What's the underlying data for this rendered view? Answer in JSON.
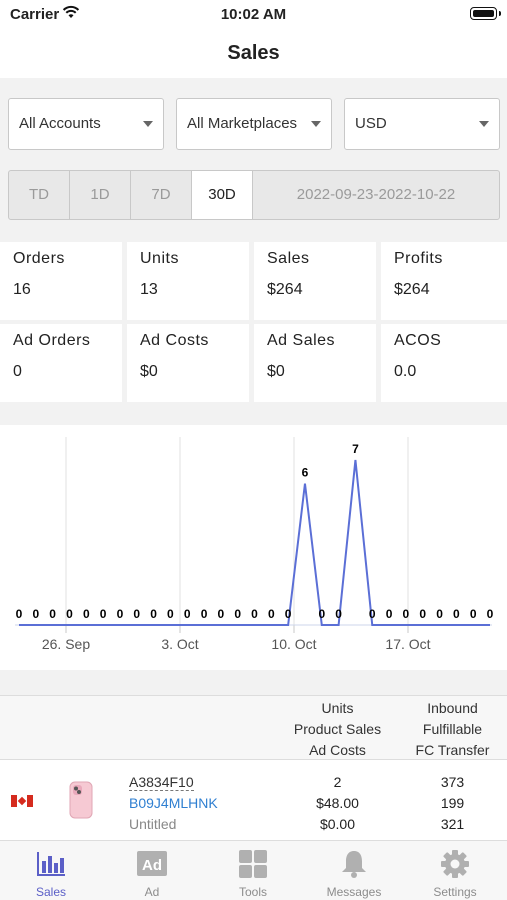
{
  "status": {
    "carrier": "Carrier",
    "time": "10:02 AM"
  },
  "nav": {
    "title": "Sales"
  },
  "filters": {
    "account": "All Accounts",
    "marketplace": "All Marketplaces",
    "currency": "USD"
  },
  "periods": {
    "options": [
      "TD",
      "1D",
      "7D",
      "30D"
    ],
    "selected": "30D",
    "range": "2022-09-23-2022-10-22"
  },
  "metrics": [
    {
      "label": "Orders",
      "value": "16"
    },
    {
      "label": "Units",
      "value": "13"
    },
    {
      "label": "Sales",
      "value": "$264"
    },
    {
      "label": "Profits",
      "value": "$264"
    },
    {
      "label": "Ad Orders",
      "value": "0"
    },
    {
      "label": "Ad Costs",
      "value": "$0"
    },
    {
      "label": "Ad Sales",
      "value": "$0"
    },
    {
      "label": "ACOS",
      "value": "0.0"
    }
  ],
  "chart_data": {
    "type": "line",
    "x_ticks": [
      "26. Sep",
      "3. Oct",
      "10. Oct",
      "17. Oct"
    ],
    "values": [
      0,
      0,
      0,
      0,
      0,
      0,
      0,
      0,
      0,
      0,
      0,
      0,
      0,
      0,
      0,
      0,
      0,
      6,
      0,
      0,
      7,
      0,
      0,
      0,
      0,
      0,
      0,
      0,
      0
    ],
    "series_color": "#5b6fd6",
    "grid": true
  },
  "table": {
    "header": {
      "col2": [
        "Units",
        "Product Sales",
        "Ad Costs"
      ],
      "col3": [
        "Inbound",
        "Fulfillable",
        "FC Transfer"
      ]
    },
    "rows": [
      {
        "flag": "canada-flag-icon",
        "sku": "A3834F10",
        "asin": "B09J4MLHNK",
        "name": "Untitled",
        "units": "2",
        "product_sales": "$48.00",
        "ad_costs": "$0.00",
        "inbound": "373",
        "fulfillable": "199",
        "fc_transfer": "321"
      }
    ]
  },
  "tabs": [
    {
      "label": "Sales",
      "icon": "bar-chart-icon",
      "active": true
    },
    {
      "label": "Ad",
      "icon": "ad-icon",
      "active": false
    },
    {
      "label": "Tools",
      "icon": "grid-icon",
      "active": false
    },
    {
      "label": "Messages",
      "icon": "bell-icon",
      "active": false
    },
    {
      "label": "Settings",
      "icon": "gear-icon",
      "active": false
    }
  ],
  "colors": {
    "accent": "#5b5fc7",
    "link": "#2f7fd1"
  }
}
